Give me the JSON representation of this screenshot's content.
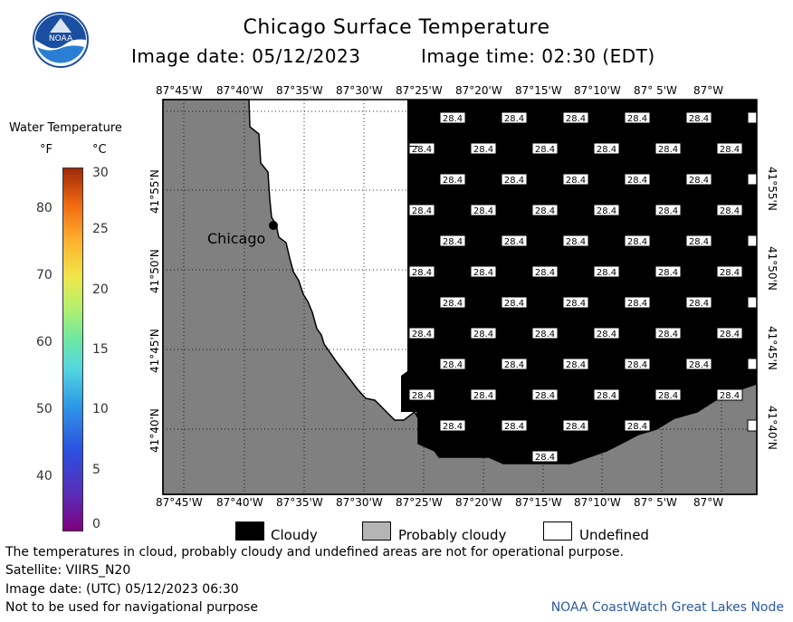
{
  "title": "Chicago Surface Temperature",
  "image_date": "Image date: 05/12/2023",
  "image_time": "Image time: 02:30 (EDT)",
  "logo_text": "NOAA",
  "colorbar": {
    "title": "Water Temperature",
    "unit_f": "°F",
    "unit_c": "°C",
    "f_ticks": [
      "80",
      "70",
      "60",
      "50",
      "40"
    ],
    "c_ticks": [
      "30",
      "25",
      "20",
      "15",
      "10",
      "5",
      "0"
    ]
  },
  "map": {
    "lon_labels": [
      "87°45'W",
      "87°40'W",
      "87°35'W",
      "87°30'W",
      "87°25'W",
      "87°20'W",
      "87°15'W",
      "87°10'W",
      "87° 5'W",
      "87°W"
    ],
    "lat_labels": [
      "41°55'N",
      "41°50'N",
      "41°45'N",
      "41°40'N"
    ],
    "city_label": "Chicago",
    "temperature_value": "28.4",
    "colors": {
      "land": "#808080",
      "cloudy": "#000000",
      "undefined": "#ffffff"
    }
  },
  "legend": {
    "cloudy": "Cloudy",
    "probably_cloudy": "Probably cloudy",
    "undefined": "Undefined"
  },
  "footer": {
    "note": "The temperatures in cloud, probably cloudy and undefined areas are not for operational purpose.",
    "satellite": "Satellite: VIIRS_N20",
    "utc_date": "Image date: (UTC) 05/12/2023  06:30",
    "nav_warning": "Not to be used for navigational purpose",
    "credit": "NOAA CoastWatch Great Lakes Node"
  }
}
